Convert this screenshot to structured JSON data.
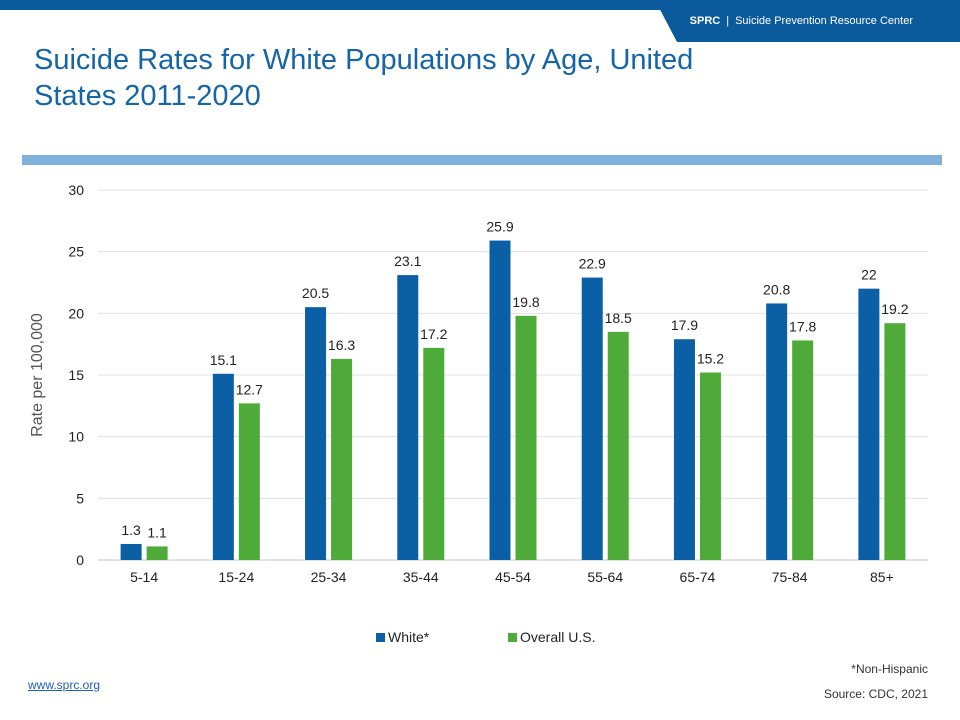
{
  "header": {
    "brand_short": "SPRC",
    "brand_sep": "|",
    "brand_full": "Suicide Prevention Resource Center",
    "title": "Suicide Rates for White Populations by Age, United States 2011-2020"
  },
  "colors": {
    "brand": "#0b5a9c",
    "accent_rule": "#7fb1dc",
    "title": "#1565a8",
    "white_series": "#0b5fa5",
    "overall_series": "#4eaa39"
  },
  "chart_data": {
    "type": "bar",
    "title": "Suicide Rates for White Populations by Age, United States 2011-2020",
    "xlabel": "",
    "ylabel": "Rate per 100,000",
    "categories": [
      "5-14",
      "15-24",
      "25-34",
      "35-44",
      "45-54",
      "55-64",
      "65-74",
      "75-84",
      "85+"
    ],
    "series": [
      {
        "name": "White*",
        "color": "#0b5fa5",
        "values": [
          1.3,
          15.1,
          20.5,
          23.1,
          25.9,
          22.9,
          17.9,
          20.8,
          22
        ]
      },
      {
        "name": "Overall U.S.",
        "color": "#4eaa39",
        "values": [
          1.1,
          12.7,
          16.3,
          17.2,
          19.8,
          18.5,
          15.2,
          17.8,
          19.2
        ]
      }
    ],
    "ylim": [
      0,
      30
    ],
    "yticks": [
      0,
      5,
      10,
      15,
      20,
      25,
      30
    ],
    "grid": true,
    "legend": "bottom-center"
  },
  "footer": {
    "website": "www.sprc.org",
    "footnote": "*Non-Hispanic",
    "source": "Source: CDC, 2021"
  }
}
